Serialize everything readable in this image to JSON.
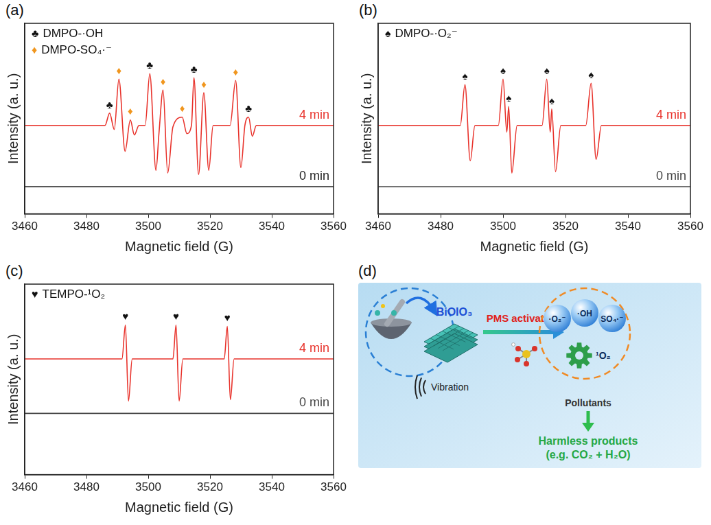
{
  "chart_data": [
    {
      "panel": "(a)",
      "type": "line",
      "x_label": "Magnetic field (G)",
      "y_label": "Intensity (a. u.)",
      "xlim": [
        3460,
        3560
      ],
      "xticks": [
        3460,
        3480,
        3500,
        3520,
        3540,
        3560
      ],
      "ylim": [
        -2,
        12
      ],
      "tick_labels": "x",
      "grid": false,
      "legend_items": [
        {
          "symbol": "♣",
          "text": "DMPO-·OH",
          "color": "#111111"
        },
        {
          "symbol": "♦",
          "text": "DMPO-SO₄·⁻",
          "color": "#f0961e"
        }
      ],
      "peak_marks": [
        {
          "symbol": "♣",
          "color": "#111111",
          "x": [
            3487.5,
            3500.5,
            3514.8,
            3532.5
          ],
          "y": [
            5.4,
            8.3,
            8.0,
            5.1
          ]
        },
        {
          "symbol": "♦",
          "color": "#f0961e",
          "x": [
            3490.5,
            3494.2,
            3504.8,
            3511,
            3518,
            3528.3
          ],
          "y": [
            7.9,
            4.9,
            7.1,
            5.1,
            6.9,
            7.8
          ]
        }
      ],
      "series": [
        {
          "name": "4 min",
          "color": "#e8322b",
          "x": [
            3460,
            3478,
            3486,
            3487.5,
            3489,
            3490.5,
            3492.5,
            3494.2,
            3495.5,
            3497,
            3499,
            3500.5,
            3502.5,
            3503.5,
            3504.8,
            3506.3,
            3508,
            3511,
            3512.5,
            3514,
            3514.8,
            3516.3,
            3518,
            3519.6,
            3521,
            3526.5,
            3528.3,
            3530,
            3531.3,
            3532.5,
            3533.7,
            3535,
            3560
          ],
          "values": [
            4.5,
            4.5,
            4.5,
            5.4,
            4.2,
            7.9,
            2.6,
            4.9,
            3.8,
            4.5,
            4.5,
            8.3,
            1.2,
            4.0,
            7.1,
            1.0,
            4.4,
            5.1,
            3.9,
            4.5,
            8.0,
            0.9,
            6.9,
            1.2,
            4.5,
            4.5,
            7.8,
            1.4,
            4.5,
            5.1,
            3.7,
            4.5,
            4.5
          ]
        },
        {
          "name": "0 min",
          "color": "#222222",
          "x": [
            3460,
            3560
          ],
          "values": [
            0,
            0
          ]
        }
      ]
    },
    {
      "panel": "(b)",
      "type": "line",
      "x_label": "Magnetic field (G)",
      "y_label": "Intensity (a. u.)",
      "xlim": [
        3460,
        3560
      ],
      "xticks": [
        3460,
        3480,
        3500,
        3520,
        3540,
        3560
      ],
      "ylim": [
        -2,
        12
      ],
      "tick_labels": "x",
      "grid": false,
      "legend_items": [
        {
          "symbol": "♠",
          "text": "DMPO-·O₂⁻",
          "color": "#111111"
        }
      ],
      "peak_marks": [
        {
          "symbol": "♠",
          "color": "#111111",
          "x": [
            3487.8,
            3500,
            3501.8,
            3514,
            3515.6,
            3528.2
          ],
          "y": [
            7.5,
            7.9,
            5.9,
            7.9,
            5.7,
            7.6
          ]
        }
      ],
      "series": [
        {
          "name": "4 min",
          "color": "#e8322b",
          "x": [
            3460,
            3486.3,
            3487.8,
            3489.5,
            3491,
            3498.5,
            3500,
            3501.2,
            3501.8,
            3502.8,
            3504.5,
            3512.5,
            3514,
            3515.1,
            3515.6,
            3516.8,
            3518.5,
            3526.5,
            3528.2,
            3529.8,
            3531.5,
            3560
          ],
          "values": [
            4.5,
            4.5,
            7.5,
            1.9,
            4.5,
            4.5,
            7.9,
            4.0,
            5.9,
            1.0,
            4.5,
            4.5,
            7.9,
            4.0,
            5.7,
            1.1,
            4.5,
            4.5,
            7.6,
            2.0,
            4.5,
            4.5
          ]
        },
        {
          "name": "0 min",
          "color": "#444444",
          "x": [
            3460,
            3560
          ],
          "values": [
            0,
            0
          ]
        }
      ]
    },
    {
      "panel": "(c)",
      "type": "line",
      "x_label": "Magnetic field (G)",
      "y_label": "Intensity (a. u.)",
      "xlim": [
        3460,
        3560
      ],
      "xticks": [
        3460,
        3480,
        3500,
        3520,
        3540,
        3560
      ],
      "ylim": [
        -2,
        12
      ],
      "tick_labels": "x",
      "grid": false,
      "legend_items": [
        {
          "symbol": "♥",
          "text": "TEMPO-¹O₂",
          "color": "#111111"
        }
      ],
      "peak_marks": [
        {
          "symbol": "♥",
          "color": "#111111",
          "x": [
            3492.6,
            3509,
            3525.6
          ],
          "y": [
            9.0,
            9.0,
            8.9
          ]
        }
      ],
      "series": [
        {
          "name": "4 min",
          "color": "#e8322b",
          "x": [
            3460,
            3491.5,
            3492.6,
            3493.6,
            3494.8,
            3508,
            3509,
            3510,
            3511.2,
            3524.6,
            3525.6,
            3526.6,
            3527.8,
            3560
          ],
          "values": [
            6.5,
            6.5,
            9.0,
            3.4,
            6.5,
            6.5,
            9.0,
            3.4,
            6.5,
            6.5,
            8.9,
            3.5,
            6.5,
            6.5
          ]
        },
        {
          "name": "0 min",
          "color": "#444444",
          "x": [
            3460,
            3560
          ],
          "values": [
            2.5,
            2.5
          ]
        }
      ]
    }
  ],
  "diagram": {
    "panel": "(d)",
    "material": "BiOIO₃",
    "process": "PMS activation",
    "stimulus": "Vibration",
    "species": [
      "·O₂⁻",
      "·OH",
      "SO₄·⁻"
    ],
    "nonradical": "¹O₂",
    "input": "Pollutants",
    "output": [
      "Harmless products",
      "(e.g. CO₂ + H₂O)"
    ]
  }
}
